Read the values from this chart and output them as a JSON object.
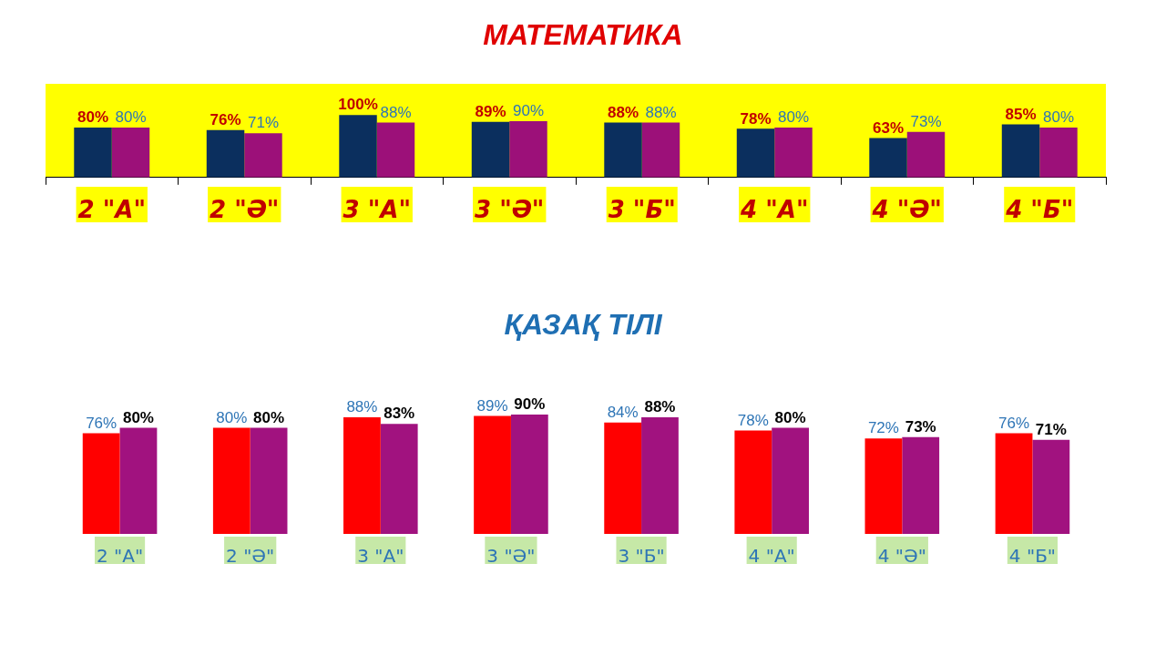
{
  "chart_data": [
    {
      "type": "bar",
      "title": "МАТЕМАТИКА",
      "categories": [
        "2 \"А\"",
        "2 \"Ә\"",
        "3 \"А\"",
        "3 \"Ә\"",
        "3 \"Б\"",
        "4 \"А\"",
        "4 \"Ә\"",
        "4 \"Б\""
      ],
      "series": [
        {
          "color": "#0b2f5e",
          "values": [
            80,
            76,
            100,
            89,
            88,
            78,
            63,
            85
          ],
          "value_labels": [
            "80%",
            "76%",
            "100%",
            "89%",
            "88%",
            "78%",
            "63%",
            "85%"
          ]
        },
        {
          "color": "#9c1079",
          "values": [
            80,
            71,
            88,
            90,
            88,
            80,
            73,
            80
          ],
          "value_labels": [
            "80%",
            "71%",
            "88%",
            "90%",
            "88%",
            "80%",
            "73%",
            "80%"
          ]
        }
      ],
      "ylim": [
        0,
        150
      ],
      "tick_labels": "x",
      "legend": false,
      "grid": false
    },
    {
      "type": "bar",
      "title": "ҚАЗАҚ ТІЛІ",
      "categories": [
        "2 \"А\"",
        "2 \"Ә\"",
        "3 \"А\"",
        "3 \"Ә\"",
        "3 \"Б\"",
        "4 \"А\"",
        "4 \"Ә\"",
        "4 \"Б\""
      ],
      "series": [
        {
          "color": "#ff0000",
          "values": [
            76,
            80,
            88,
            89,
            84,
            78,
            72,
            76
          ],
          "value_labels": [
            "76%",
            "80%",
            "88%",
            "89%",
            "84%",
            "78%",
            "72%",
            "76%"
          ]
        },
        {
          "color": "#a1127f",
          "values": [
            80,
            80,
            83,
            90,
            88,
            80,
            73,
            71
          ],
          "value_labels": [
            "80%",
            "80%",
            "83%",
            "90%",
            "88%",
            "80%",
            "73%",
            "71%"
          ]
        }
      ],
      "tick_labels": "x",
      "legend": false,
      "grid": false
    }
  ]
}
